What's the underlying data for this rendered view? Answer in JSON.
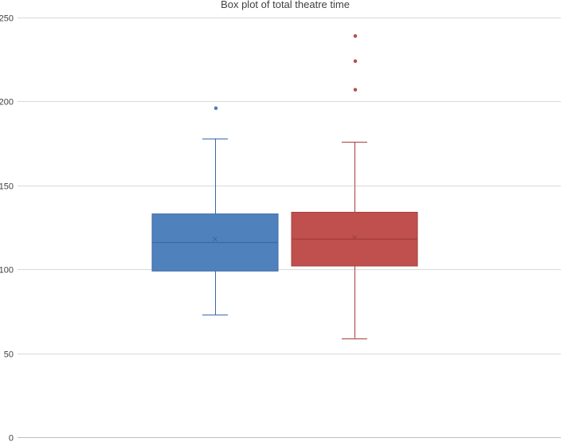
{
  "chart_data": {
    "type": "box",
    "title": "Box plot of total theatre time",
    "xlabel": "",
    "ylabel": "",
    "ylim": [
      0,
      250
    ],
    "yticks": [
      0,
      50,
      100,
      150,
      200,
      250
    ],
    "grid": true,
    "legend": "none",
    "series": [
      {
        "color": "#4f81bd",
        "edge_color": "#3a6aa6",
        "whisker_low": 73,
        "q1": 99,
        "median": 116,
        "mean": 118,
        "q3": 133,
        "whisker_high": 178,
        "outliers": [
          196
        ]
      },
      {
        "color": "#c0504d",
        "edge_color": "#a53e3b",
        "whisker_low": 59,
        "q1": 102,
        "median": 118,
        "mean": 119,
        "q3": 134,
        "whisker_high": 176,
        "outliers": [
          207,
          224,
          239
        ]
      }
    ]
  }
}
